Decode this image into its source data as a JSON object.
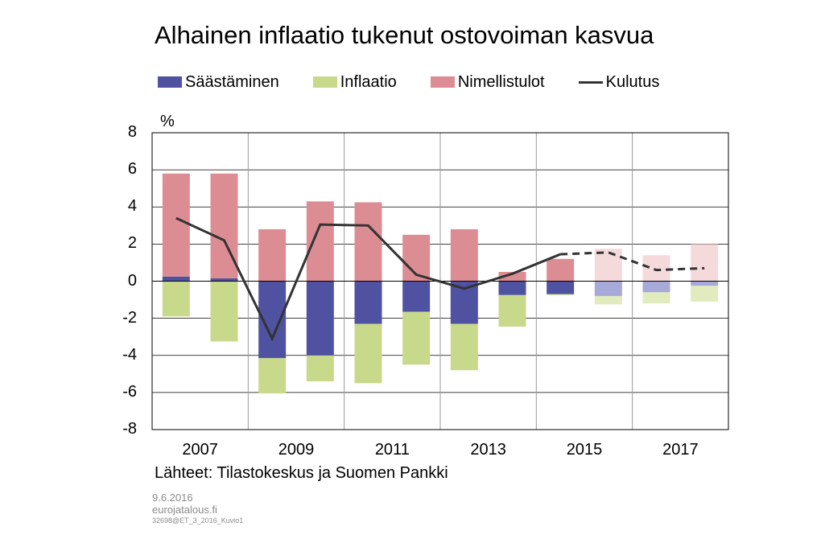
{
  "chart_data": {
    "type": "bar",
    "title": "Alhainen inflaatio tukenut ostovoiman kasvua",
    "unit_label": "%",
    "ylim": [
      -8,
      8
    ],
    "yticks": [
      "8",
      "6",
      "4",
      "2",
      "0",
      "-2",
      "-4",
      "-6",
      "-8"
    ],
    "xtick_labels": [
      "2007",
      "2009",
      "2011",
      "2013",
      "2015",
      "2017"
    ],
    "categories": [
      "2007",
      "2008",
      "2009",
      "2010",
      "2011",
      "2012",
      "2013",
      "2014",
      "2015",
      "2016",
      "2017",
      "2018"
    ],
    "forecast_from_index": 9,
    "grid": true,
    "legend_position": "top",
    "series": [
      {
        "name": "Säästäminen",
        "kind": "bar",
        "color": "#4f52a0",
        "forecast_color": "#a7a9d8",
        "values": [
          0.25,
          0.15,
          -4.15,
          -4.0,
          -2.3,
          -1.65,
          -2.3,
          -0.75,
          -0.7,
          -0.8,
          -0.6,
          -0.25
        ]
      },
      {
        "name": "Inflaatio",
        "kind": "bar",
        "color": "#c9d98c",
        "forecast_color": "#e1ebbd",
        "values": [
          -1.9,
          -3.25,
          -1.9,
          -1.4,
          -3.2,
          -2.85,
          -2.5,
          -1.7,
          -0.05,
          -0.45,
          -0.6,
          -0.85
        ]
      },
      {
        "name": "Nimellistulot",
        "kind": "bar",
        "color": "#dc8d93",
        "forecast_color": "#f5dadc",
        "values": [
          5.55,
          5.65,
          2.8,
          4.3,
          4.25,
          2.5,
          2.8,
          0.5,
          1.2,
          1.75,
          1.4,
          2.0
        ]
      },
      {
        "name": "Kulutus",
        "kind": "line",
        "color": "#333333",
        "values": [
          3.4,
          2.2,
          -3.1,
          3.05,
          3.0,
          0.35,
          -0.4,
          0.4,
          1.45,
          1.55,
          0.6,
          0.7
        ]
      }
    ]
  },
  "footer": {
    "source": "Lähteet: Tilastokeskus ja Suomen Pankki",
    "date": "9.6.2016",
    "site": "eurojatalous.fi",
    "code": "32698@ET_3_2016_Kuvio1"
  }
}
